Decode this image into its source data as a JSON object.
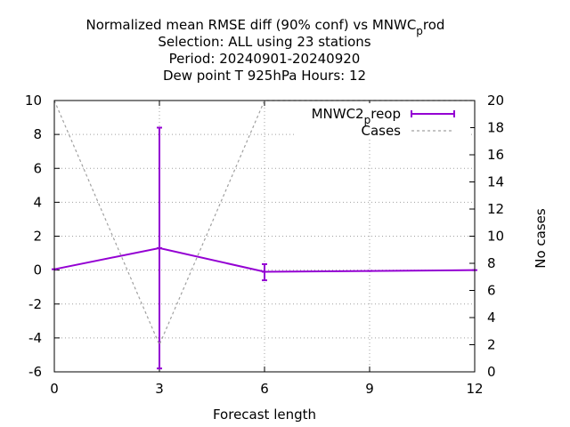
{
  "chart_data": {
    "type": "line",
    "title": {
      "line1_main": "Normalized mean RMSE diff (90% conf) vs MNWC",
      "line1_sub": "p",
      "line1_tail": "rod",
      "line2": "Selection: ALL using    23 stations",
      "line3": "Period: 20240901-20240920",
      "line4": "Dew point T 925hPa   Hours:  12"
    },
    "xlabel": "Forecast length",
    "ylabel": "",
    "y2label": "No cases",
    "xlim": [
      0,
      12
    ],
    "ylim": [
      -6,
      10
    ],
    "y2lim": [
      0,
      20
    ],
    "xticks": [
      "0",
      "3",
      "6",
      "9",
      "12"
    ],
    "yticks": [
      "-6",
      "-4",
      "-2",
      "0",
      "2",
      "4",
      "6",
      "8",
      "10"
    ],
    "y2ticks": [
      "0",
      "2",
      "4",
      "6",
      "8",
      "10",
      "12",
      "14",
      "16",
      "18",
      "20"
    ],
    "grid": true,
    "legend_position": "top-right",
    "series": [
      {
        "name_main": "MNWC2",
        "name_sub": "p",
        "name_tail": "reop",
        "color": "#9400d3",
        "axis": "y",
        "x": [
          0,
          3,
          6,
          9,
          12
        ],
        "y": [
          0.05,
          1.3,
          -0.1,
          -0.05,
          0.0
        ],
        "err_low": [
          0.05,
          -5.8,
          -0.6,
          -0.05,
          0.0
        ],
        "err_high": [
          0.05,
          8.4,
          0.35,
          -0.05,
          0.0
        ]
      },
      {
        "name": "Cases",
        "color": "#a0a0a0",
        "axis": "y2",
        "x": [
          0,
          3,
          6,
          9,
          12
        ],
        "y": [
          20,
          2,
          20,
          20,
          20
        ]
      }
    ]
  }
}
